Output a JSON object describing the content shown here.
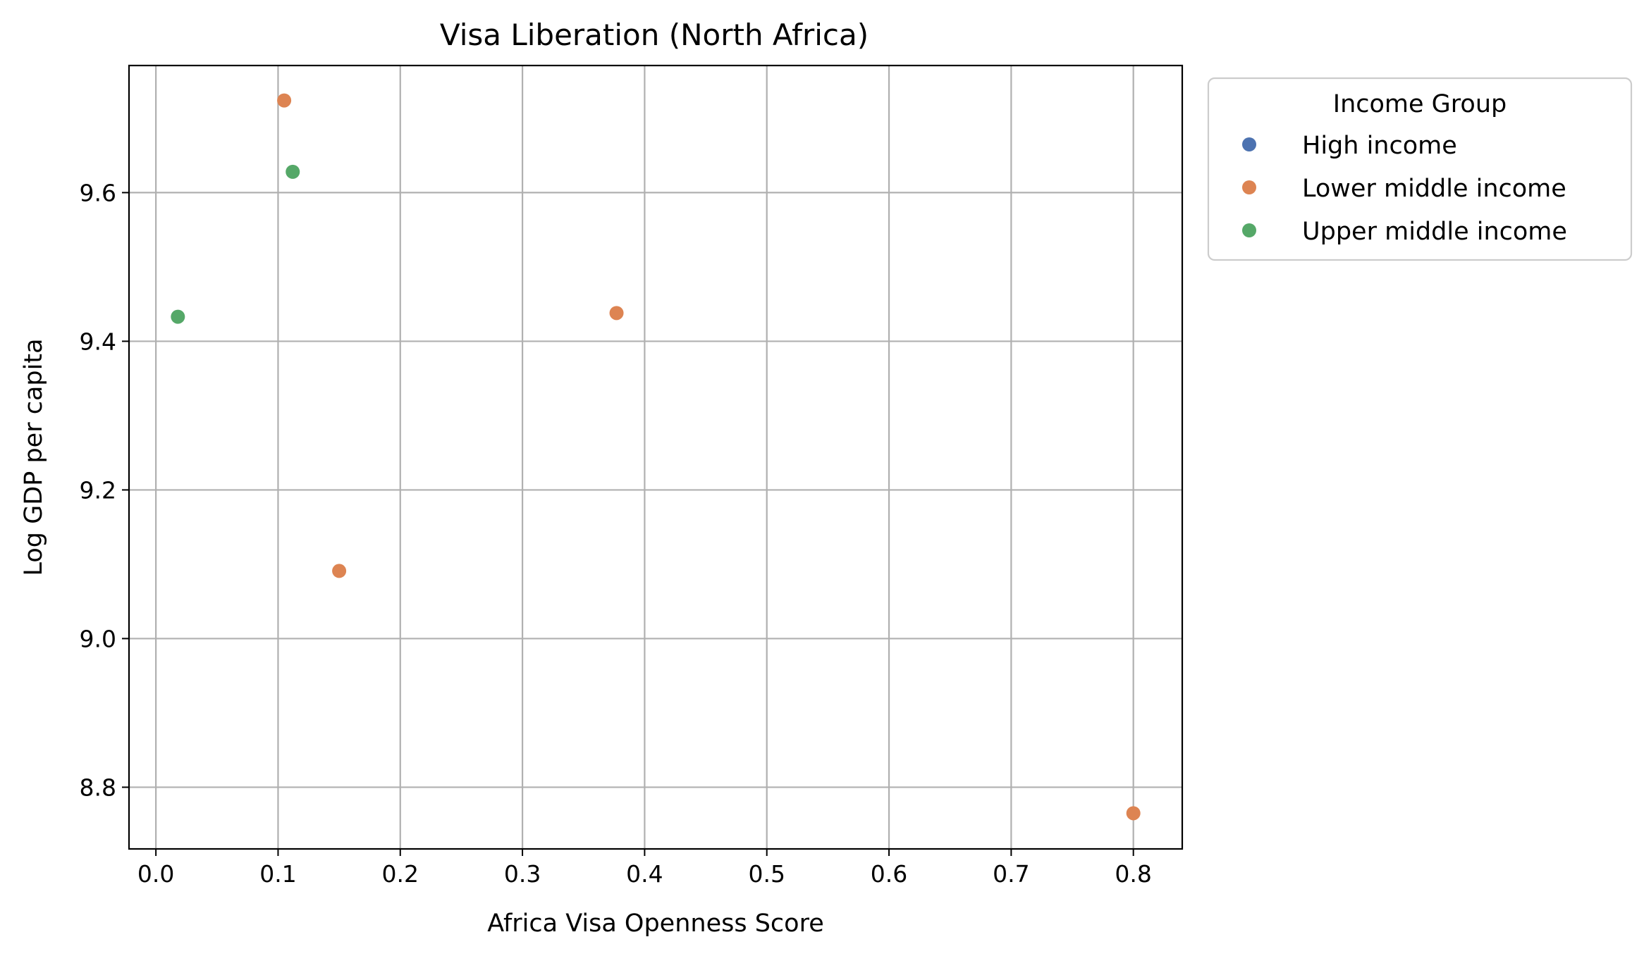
{
  "chart_data": {
    "type": "scatter",
    "title": "Visa Liberation (North Africa)",
    "xlabel": "Africa Visa Openness Score",
    "ylabel": "Log GDP per capita",
    "xlim": [
      -0.022,
      0.84
    ],
    "ylim": [
      8.717,
      9.771
    ],
    "xticks": [
      "0.0",
      "0.1",
      "0.2",
      "0.3",
      "0.4",
      "0.5",
      "0.6",
      "0.7",
      "0.8"
    ],
    "yticks": [
      "8.8",
      "9.0",
      "9.2",
      "9.4",
      "9.6"
    ],
    "grid": true,
    "legend": {
      "title": "Income Group",
      "placement": "outside-top-right"
    },
    "series": [
      {
        "name": "High income",
        "color": "#4c72b0",
        "points": []
      },
      {
        "name": "Lower middle income",
        "color": "#dd8452",
        "points": [
          {
            "x": 0.105,
            "y": 9.724
          },
          {
            "x": 0.15,
            "y": 9.091
          },
          {
            "x": 0.377,
            "y": 9.438
          },
          {
            "x": 0.8,
            "y": 8.765
          }
        ]
      },
      {
        "name": "Upper middle income",
        "color": "#55a868",
        "points": [
          {
            "x": 0.112,
            "y": 9.628
          },
          {
            "x": 0.018,
            "y": 9.433
          }
        ]
      }
    ]
  }
}
